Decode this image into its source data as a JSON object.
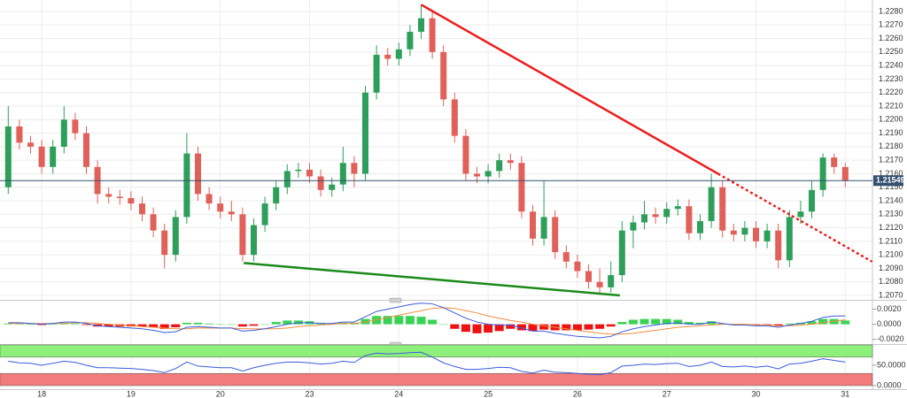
{
  "chart_data": {
    "type": "candlestick",
    "categories": [
      null,
      null,
      null,
      "18",
      null,
      null,
      null,
      null,
      null,
      null,
      null,
      "19",
      null,
      null,
      null,
      null,
      null,
      null,
      null,
      "20",
      null,
      null,
      null,
      null,
      null,
      null,
      null,
      "23",
      null,
      null,
      null,
      null,
      null,
      null,
      null,
      "24",
      null,
      null,
      null,
      null,
      null,
      null,
      null,
      "25",
      null,
      null,
      null,
      null,
      null,
      null,
      null,
      "26",
      null,
      null,
      null,
      null,
      null,
      null,
      null,
      "27",
      null,
      null,
      null,
      null,
      null,
      null,
      null,
      "30",
      null,
      null,
      null,
      null,
      null,
      null,
      null,
      "31"
    ],
    "open": [
      1.215,
      1.2195,
      1.2183,
      1.218,
      1.2165,
      1.218,
      1.22,
      1.219,
      1.2165,
      1.2145,
      1.2143,
      1.2142,
      1.2138,
      1.213,
      1.2118,
      1.21,
      1.2128,
      1.2175,
      1.2145,
      1.2138,
      1.2132,
      1.213,
      1.21,
      1.2122,
      1.2138,
      1.215,
      1.2162,
      1.2163,
      1.2158,
      1.2148,
      1.2152,
      1.2168,
      1.216,
      1.222,
      1.2248,
      1.2245,
      1.2252,
      1.2265,
      1.2275,
      1.225,
      1.2215,
      1.2188,
      1.216,
      1.2158,
      1.2162,
      1.217,
      1.2168,
      1.2132,
      1.2112,
      1.2128,
      1.2102,
      1.2095,
      1.2088,
      1.208,
      1.2076,
      1.2085,
      1.2118,
      1.2124,
      1.213,
      1.2128,
      1.2134,
      1.2136,
      1.2116,
      1.2125,
      1.215,
      1.2118,
      1.2115,
      1.212,
      1.211,
      1.2118,
      1.2096,
      1.2128,
      1.2132,
      1.2148,
      1.2172,
      1.2165
    ],
    "high": [
      1.221,
      1.22,
      1.2188,
      1.2185,
      1.2185,
      1.221,
      1.2205,
      1.2195,
      1.217,
      1.215,
      1.2148,
      1.2147,
      1.2143,
      1.2135,
      1.2123,
      1.2133,
      1.219,
      1.218,
      1.215,
      1.2143,
      1.214,
      1.2135,
      1.2127,
      1.2143,
      1.2155,
      1.2167,
      1.2168,
      1.2168,
      1.2163,
      1.2157,
      1.218,
      1.2173,
      1.2225,
      1.2255,
      1.2253,
      1.2257,
      1.227,
      1.2285,
      1.228,
      1.2255,
      1.222,
      1.2193,
      1.2165,
      1.2167,
      1.2175,
      1.2175,
      1.2173,
      1.2137,
      1.2155,
      1.2133,
      1.2107,
      1.21,
      1.2093,
      1.209,
      1.2095,
      1.2125,
      1.2129,
      1.214,
      1.2135,
      1.2139,
      1.2141,
      1.2141,
      1.213,
      1.216,
      1.2155,
      1.2123,
      1.2125,
      1.2125,
      1.2123,
      1.2123,
      1.2133,
      1.214,
      1.2155,
      1.2175,
      1.2175,
      1.2168
    ],
    "low": [
      1.2145,
      1.2178,
      1.2175,
      1.216,
      1.216,
      1.2175,
      1.2185,
      1.216,
      1.2138,
      1.2138,
      1.2137,
      1.2133,
      1.2125,
      1.2113,
      1.209,
      1.2095,
      1.2123,
      1.214,
      1.2133,
      1.2127,
      1.2125,
      1.2095,
      1.2095,
      1.2117,
      1.2133,
      1.2145,
      1.2157,
      1.2153,
      1.2143,
      1.2143,
      1.2147,
      1.215,
      1.2155,
      1.2215,
      1.224,
      1.224,
      1.2247,
      1.226,
      1.2245,
      1.221,
      1.2183,
      1.2155,
      1.2153,
      1.2153,
      1.2157,
      1.2163,
      1.2127,
      1.2107,
      1.2107,
      1.2097,
      1.209,
      1.2083,
      1.2075,
      1.2072,
      1.2072,
      1.208,
      1.2105,
      1.2119,
      1.2123,
      1.2123,
      1.2129,
      1.2111,
      1.2111,
      1.212,
      1.2113,
      1.211,
      1.211,
      1.2105,
      1.2105,
      1.209,
      1.2091,
      1.2123,
      1.2127,
      1.2143,
      1.216,
      1.215
    ],
    "close": [
      1.2195,
      1.2183,
      1.218,
      1.2165,
      1.218,
      1.22,
      1.219,
      1.2165,
      1.2145,
      1.2143,
      1.2142,
      1.2138,
      1.213,
      1.2118,
      1.21,
      1.2128,
      1.2175,
      1.2145,
      1.2138,
      1.2132,
      1.213,
      1.21,
      1.2122,
      1.2138,
      1.215,
      1.2162,
      1.2163,
      1.2158,
      1.2148,
      1.2152,
      1.2168,
      1.216,
      1.222,
      1.2248,
      1.2245,
      1.2252,
      1.2265,
      1.2275,
      1.225,
      1.2215,
      1.2188,
      1.216,
      1.2158,
      1.2162,
      1.217,
      1.2168,
      1.2132,
      1.2112,
      1.2128,
      1.2102,
      1.2095,
      1.2088,
      1.208,
      1.2076,
      1.2085,
      1.2118,
      1.2124,
      1.213,
      1.2128,
      1.2134,
      1.2136,
      1.2116,
      1.2125,
      1.215,
      1.2118,
      1.2115,
      1.212,
      1.211,
      1.2118,
      1.2096,
      1.2128,
      1.2132,
      1.2148,
      1.2172,
      1.2165,
      1.2155
    ],
    "up_color": "#2e9e5b",
    "down_color": "#e0605a",
    "ylim": [
      1.20674,
      1.22885
    ],
    "yticks": [
      {
        "value": 1.207,
        "label": "1.2070"
      },
      {
        "value": 1.208,
        "label": "1.2080"
      },
      {
        "value": 1.209,
        "label": "1.2090"
      },
      {
        "value": 1.21,
        "label": "1.2100"
      },
      {
        "value": 1.211,
        "label": "1.2110"
      },
      {
        "value": 1.212,
        "label": "1.2120"
      },
      {
        "value": 1.213,
        "label": "1.2130"
      },
      {
        "value": 1.214,
        "label": "1.2140"
      },
      {
        "value": 1.215,
        "label": "1.2150"
      },
      {
        "value": 1.216,
        "label": "1.2160"
      },
      {
        "value": 1.217,
        "label": "1.2170"
      },
      {
        "value": 1.218,
        "label": "1.2180"
      },
      {
        "value": 1.219,
        "label": "1.2190"
      },
      {
        "value": 1.22,
        "label": "1.2200"
      },
      {
        "value": 1.221,
        "label": "1.2210"
      },
      {
        "value": 1.222,
        "label": "1.2220"
      },
      {
        "value": 1.223,
        "label": "1.2230"
      },
      {
        "value": 1.224,
        "label": "1.2240"
      },
      {
        "value": 1.225,
        "label": "1.2250"
      },
      {
        "value": 1.226,
        "label": "1.2260"
      },
      {
        "value": 1.227,
        "label": "1.2270"
      },
      {
        "value": 1.228,
        "label": "1.2280"
      }
    ],
    "grid": true,
    "current_price": 1.21549,
    "current_price_color": "#33506e",
    "trend_lines": [
      {
        "color": "#ee1c1c",
        "style": "solid",
        "x": [
          37,
          63.6
        ],
        "y": [
          1.2285,
          1.216
        ]
      },
      {
        "color": "#ee1c1c",
        "style": "dotted",
        "x": [
          63.6,
          77.4
        ],
        "y": [
          1.216,
          1.2095
        ]
      },
      {
        "color": "#1a8a1a",
        "style": "solid",
        "x": [
          21.1,
          54.8
        ],
        "y": [
          1.2094,
          1.207
        ]
      }
    ],
    "macd_panel": {
      "ylim": [
        -0.0025,
        0.003
      ],
      "yticks": [
        {
          "value": 0.002,
          "label": "0.0020"
        },
        {
          "value": 0,
          "label": "0.0000"
        },
        {
          "value": -0.002,
          "label": "-0.0020"
        }
      ],
      "macd": {
        "color": "#3b5bdb",
        "values": [
          0.0002,
          0.0002,
          0.0001,
          0.0,
          0.0001,
          0.0003,
          0.0003,
          0.0001,
          -0.0002,
          -0.0003,
          -0.0004,
          -0.0005,
          -0.0006,
          -0.0008,
          -0.0011,
          -0.001,
          -0.0004,
          -0.0003,
          -0.0004,
          -0.0005,
          -0.0005,
          -0.0009,
          -0.0008,
          -0.0006,
          -0.0003,
          0.0,
          0.0002,
          0.0002,
          0.0001,
          0.0001,
          0.0003,
          0.0003,
          0.001,
          0.0017,
          0.002,
          0.0023,
          0.0026,
          0.0028,
          0.0027,
          0.0022,
          0.0015,
          0.0008,
          0.0003,
          0.0,
          -0.0001,
          -0.0001,
          -0.0005,
          -0.0009,
          -0.0009,
          -0.0012,
          -0.0014,
          -0.0016,
          -0.0017,
          -0.0018,
          -0.0016,
          -0.001,
          -0.0006,
          -0.0003,
          -0.0001,
          0.0001,
          0.0002,
          0.0,
          0.0,
          0.0003,
          0.0001,
          -0.0001,
          -0.0001,
          -0.0002,
          -0.0002,
          -0.0004,
          -0.0001,
          0.0001,
          0.0004,
          0.0009,
          0.0011,
          0.0011
        ]
      },
      "signal": {
        "color": "#f08c3a",
        "values": [
          0.0001,
          0.0001,
          0.0001,
          0.0001,
          0.0001,
          0.0001,
          0.0002,
          0.0002,
          0.0001,
          0.0,
          -0.0001,
          -0.0002,
          -0.0003,
          -0.0004,
          -0.0005,
          -0.0006,
          -0.0006,
          -0.0005,
          -0.0005,
          -0.0005,
          -0.0005,
          -0.0006,
          -0.0006,
          -0.0006,
          -0.0006,
          -0.0005,
          -0.0003,
          -0.0002,
          -0.0001,
          0.0,
          0.0001,
          0.0001,
          0.0003,
          0.0006,
          0.0009,
          0.0012,
          0.0015,
          0.0018,
          0.0021,
          0.0022,
          0.0021,
          0.0018,
          0.0015,
          0.0011,
          0.0008,
          0.0005,
          0.0003,
          0.0,
          -0.0002,
          -0.0004,
          -0.0006,
          -0.0008,
          -0.001,
          -0.0012,
          -0.0013,
          -0.0013,
          -0.0012,
          -0.001,
          -0.0008,
          -0.0006,
          -0.0004,
          -0.0003,
          -0.0002,
          -0.0001,
          0.0,
          0.0,
          0.0,
          -0.0001,
          -0.0001,
          -0.0002,
          -0.0002,
          -0.0001,
          0.0,
          0.0002,
          0.0004,
          0.0006
        ]
      },
      "histogram": {
        "up_color": "#39d353",
        "down_color": "#ee1111",
        "values": [
          0.0001,
          0.0001,
          0.0,
          -0.0001,
          0.0,
          0.0002,
          0.0001,
          -0.0001,
          -0.0003,
          -0.0003,
          -0.0003,
          -0.0003,
          -0.0003,
          -0.0004,
          -0.0006,
          -0.0004,
          0.0002,
          0.0002,
          0.0001,
          0.0,
          0.0,
          -0.0003,
          -0.0002,
          0.0,
          0.0003,
          0.0005,
          0.0005,
          0.0004,
          0.0002,
          0.0001,
          0.0002,
          0.0002,
          0.0007,
          0.0011,
          0.0011,
          0.0011,
          0.0011,
          0.001,
          0.0006,
          0.0,
          -0.0006,
          -0.001,
          -0.0012,
          -0.0011,
          -0.0009,
          -0.0006,
          -0.0008,
          -0.0009,
          -0.0007,
          -0.0008,
          -0.0008,
          -0.0008,
          -0.0007,
          -0.0006,
          -0.0003,
          0.0003,
          0.0006,
          0.0007,
          0.0007,
          0.0007,
          0.0006,
          0.0003,
          0.0002,
          0.0004,
          0.0001,
          -0.0001,
          -0.0001,
          -0.0001,
          -0.0001,
          -0.0002,
          0.0001,
          0.0002,
          0.0004,
          0.0007,
          0.0007,
          0.0005
        ]
      }
    },
    "rsi_panel": {
      "ylim": [
        0,
        100
      ],
      "yticks": [
        {
          "value": 50,
          "label": "50.0000"
        },
        {
          "value": 0,
          "label": "0.0000"
        }
      ],
      "color": "#3b5bdb",
      "upper_band": [
        70,
        100
      ],
      "upper_color": "#8ef07a",
      "lower_band": [
        0,
        30
      ],
      "lower_color": "#f27b7b",
      "values": [
        60,
        56,
        55,
        50,
        55,
        60,
        57,
        50,
        44,
        44,
        43,
        42,
        40,
        37,
        32,
        42,
        58,
        48,
        46,
        44,
        44,
        36,
        44,
        50,
        55,
        58,
        58,
        56,
        53,
        55,
        60,
        57,
        74,
        80,
        78,
        79,
        81,
        82,
        70,
        56,
        47,
        40,
        40,
        42,
        45,
        44,
        35,
        31,
        38,
        33,
        32,
        30,
        28,
        27,
        32,
        48,
        50,
        53,
        52,
        54,
        55,
        47,
        50,
        58,
        47,
        46,
        48,
        45,
        48,
        41,
        53,
        55,
        60,
        66,
        62,
        58
      ]
    }
  }
}
